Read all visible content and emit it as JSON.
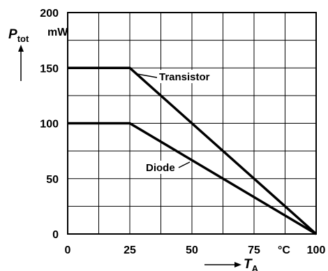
{
  "chart_data": {
    "type": "line",
    "title": "",
    "x": [
      0,
      25,
      100
    ],
    "series": [
      {
        "name": "Transistor",
        "values": [
          150,
          150,
          0
        ]
      },
      {
        "name": "Diode",
        "values": [
          100,
          100,
          0
        ]
      }
    ],
    "xlim": [
      0,
      100
    ],
    "ylim": [
      0,
      200
    ],
    "xticks": [
      "0",
      "25",
      "50",
      "75",
      "100"
    ],
    "yticks": [
      "0",
      "50",
      "100",
      "150",
      "200"
    ],
    "x_unit": "°C",
    "y_unit": "mW",
    "xlabel": {
      "symbol": "T",
      "subscript": "A"
    },
    "ylabel": {
      "symbol": "P",
      "subscript": "tot"
    },
    "grid": true,
    "grid_x_step": 12.5,
    "grid_y_step": 25
  }
}
